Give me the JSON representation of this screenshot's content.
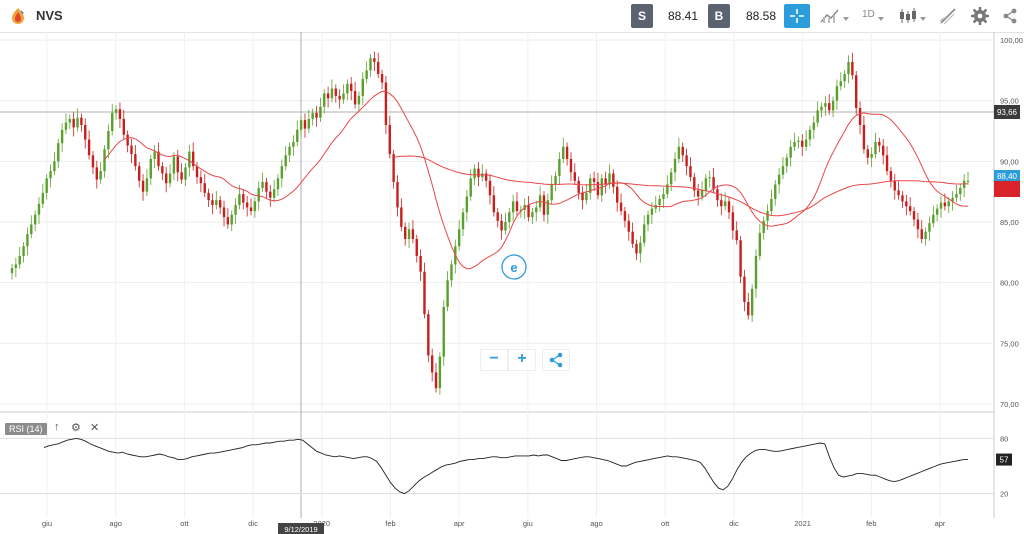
{
  "header": {
    "symbol": "NVS",
    "sell_label": "S",
    "sell_price": "88.41",
    "buy_label": "B",
    "buy_price": "88.58",
    "timeframe": "1D"
  },
  "icons": [
    "logo-icon",
    "crosshair-icon",
    "chart-type-icon",
    "candles-icon",
    "draw-icon",
    "settings-icon",
    "etoro-badge-icon",
    "zoom-out-icon",
    "zoom-in-icon",
    "share-icon"
  ],
  "colors": {
    "up": "#5aa02c",
    "down": "#c81e1e",
    "ma": "#e8474a",
    "accent": "#2d9cdb",
    "rsi_line": "#222222"
  },
  "chart_data": {
    "type": "candlestick",
    "x_tick_labels": [
      "giu",
      "ago",
      "ott",
      "dic",
      "2020",
      "feb",
      "apr",
      "giu",
      "ago",
      "ott",
      "dic",
      "2021",
      "feb",
      "apr"
    ],
    "y_tick_labels": [
      "100,00",
      "95,00",
      "90,00",
      "85,00",
      "80,00",
      "75,00",
      "70,00"
    ],
    "ylim": [
      69.5,
      100.5
    ],
    "price_labels": {
      "horizontal_line": "93,66",
      "current": "88,40"
    },
    "crosshair_date": "9/12/2019",
    "closes": [
      81.2,
      81.5,
      82.2,
      83,
      84,
      84.8,
      85.6,
      86.5,
      87.4,
      88.6,
      89.2,
      90,
      91.5,
      92.6,
      93.2,
      93.5,
      92.8,
      93.6,
      93,
      91.8,
      90.5,
      89.5,
      88.5,
      89.2,
      91,
      92.5,
      94,
      94.3,
      93.5,
      92.2,
      91.3,
      90.6,
      89.6,
      88.4,
      87.5,
      88.6,
      90.2,
      90.8,
      89.6,
      89,
      88.2,
      89,
      90.4,
      89.1,
      88.5,
      89.5,
      90.8,
      89.6,
      88.7,
      88.2,
      87.4,
      86.8,
      86.4,
      86.8,
      86.2,
      85.4,
      84.8,
      85.6,
      86.4,
      87.3,
      86.6,
      86.2,
      85.9,
      86.7,
      87.8,
      88.3,
      87.5,
      87,
      87.7,
      88.6,
      89.6,
      90.5,
      91.2,
      91.6,
      92.6,
      93.4,
      92.7,
      93.5,
      94,
      93.6,
      94.5,
      95.6,
      95.2,
      96,
      95.4,
      95.1,
      95.6,
      96.4,
      95.8,
      94.7,
      95.4,
      96.8,
      97.5,
      98.5,
      98.2,
      97.2,
      96.5,
      93,
      90.6,
      88.3,
      86.2,
      84.6,
      83.6,
      84.4,
      83.6,
      82.2,
      80.9,
      77.4,
      74,
      72.6,
      71.3,
      73.9,
      78,
      80.2,
      81.5,
      83,
      84.4,
      85.8,
      87.1,
      88.6,
      89.4,
      88.7,
      89,
      88.4,
      87.2,
      85.8,
      85.1,
      84.3,
      85,
      85.8,
      86.7,
      85.9,
      86,
      86.4,
      85.4,
      85.8,
      86.2,
      87.2,
      85.6,
      86.8,
      88.1,
      88.8,
      90.2,
      91.2,
      90.2,
      89.1,
      88.4,
      87.4,
      86.8,
      87.4,
      88.6,
      88.3,
      87.2,
      88.6,
      88.1,
      89,
      87.9,
      86.6,
      85.9,
      85.1,
      84.2,
      83.2,
      82.4,
      83.3,
      84.8,
      85.6,
      86.1,
      86.4,
      86.9,
      87.3,
      88.1,
      89.1,
      90.2,
      91.2,
      90.5,
      89.6,
      88.7,
      87.6,
      87.1,
      87.6,
      88.6,
      88.7,
      87.7,
      86.8,
      86.3,
      86.7,
      85.8,
      84.3,
      83.5,
      80.5,
      78.4,
      77.3,
      79.5,
      82.2,
      84.1,
      85.1,
      85.9,
      86.9,
      88.1,
      88.9,
      89.6,
      90.3,
      91.2,
      91.6,
      91.7,
      91.2,
      91.8,
      92.6,
      93.2,
      94.2,
      94.5,
      94.8,
      94.2,
      95,
      96.2,
      96.6,
      97.2,
      98.2,
      97.1,
      94.4,
      93,
      91,
      90.3,
      90.6,
      91.6,
      91.3,
      90.5,
      89.2,
      88.4,
      87.6,
      87.2,
      86.7,
      86.3,
      85.9,
      85.2,
      84.4,
      83.6,
      84.2,
      84.9,
      85.6,
      86.1,
      86.6,
      86.3,
      86.7,
      87,
      87.3,
      87.8,
      88.4,
      88.4
    ]
  },
  "rsi": {
    "label": "RSI (14)",
    "levels": [
      "80",
      "20"
    ],
    "current": "57",
    "values": [
      70,
      72,
      73,
      74,
      76,
      78,
      79,
      80,
      79,
      77,
      74,
      72,
      70,
      68,
      66,
      65,
      64,
      65,
      63,
      62,
      61,
      60,
      60,
      61,
      62,
      63,
      62,
      60,
      59,
      57,
      57,
      58,
      60,
      61,
      62,
      63,
      64,
      64,
      65,
      66,
      67,
      68,
      69,
      70,
      72,
      73,
      73,
      74,
      75,
      75,
      76,
      77,
      77,
      78,
      78,
      79,
      78,
      74,
      70,
      66,
      64,
      62,
      61,
      60,
      61,
      60,
      59,
      58,
      59,
      60,
      60,
      58,
      55,
      48,
      40,
      32,
      26,
      22,
      20,
      23,
      28,
      33,
      37,
      40,
      43,
      46,
      49,
      51,
      52,
      53,
      55,
      56,
      57,
      57,
      58,
      58,
      59,
      60,
      60,
      59,
      59,
      60,
      61,
      61,
      61,
      61,
      62,
      61,
      62,
      62,
      60,
      58,
      56,
      56,
      57,
      58,
      59,
      60,
      60,
      59,
      58,
      57,
      56,
      54,
      52,
      50,
      50,
      52,
      54,
      55,
      56,
      57,
      58,
      59,
      60,
      61,
      60,
      60,
      59,
      58,
      57,
      56,
      54,
      48,
      40,
      32,
      26,
      24,
      28,
      36,
      46,
      54,
      60,
      64,
      67,
      68,
      68,
      67,
      66,
      66,
      67,
      68,
      69,
      70,
      71,
      72,
      73,
      74,
      75,
      74,
      60,
      48,
      40,
      38,
      39,
      40,
      42,
      42,
      41,
      40,
      40,
      38,
      36,
      34,
      33,
      34,
      36,
      38,
      40,
      42,
      44,
      46,
      48,
      50,
      52,
      53,
      54,
      55,
      56,
      57,
      57
    ]
  }
}
